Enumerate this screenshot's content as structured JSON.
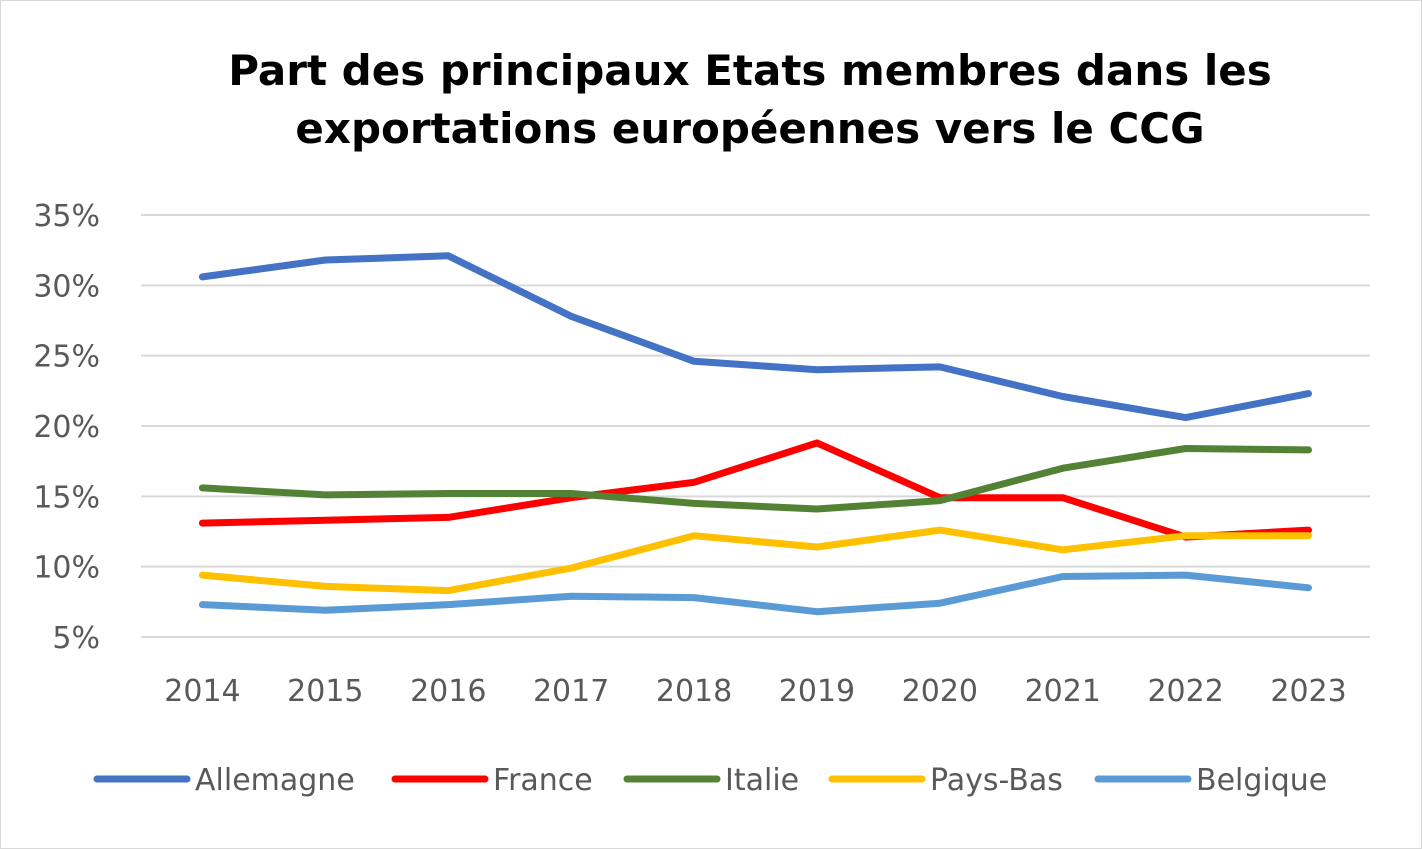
{
  "chart_data": {
    "type": "line",
    "title_line1": "Part des principaux Etats membres dans les",
    "title_line2": "exportations européennes vers le CCG",
    "categories": [
      "2014",
      "2015",
      "2016",
      "2017",
      "2018",
      "2019",
      "2020",
      "2021",
      "2022",
      "2023"
    ],
    "y_ticks": [
      "5%",
      "10%",
      "15%",
      "20%",
      "25%",
      "30%",
      "35%"
    ],
    "ylim": [
      5,
      35
    ],
    "grid": true,
    "legend_position": "bottom",
    "series": [
      {
        "name": "Allemagne",
        "color": "#4472C4",
        "values": [
          30.6,
          31.8,
          32.1,
          27.8,
          24.6,
          24.0,
          24.2,
          22.1,
          20.6,
          22.3
        ]
      },
      {
        "name": "France",
        "color": "#FF0000",
        "values": [
          13.1,
          13.3,
          13.5,
          14.9,
          16.0,
          18.8,
          14.9,
          14.9,
          12.1,
          12.6
        ]
      },
      {
        "name": "Italie",
        "color": "#548235",
        "values": [
          15.6,
          15.1,
          15.2,
          15.2,
          14.5,
          14.1,
          14.7,
          17.0,
          18.4,
          18.3
        ]
      },
      {
        "name": "Pays-Bas",
        "color": "#FFC000",
        "values": [
          9.4,
          8.6,
          8.3,
          9.9,
          12.2,
          11.4,
          12.6,
          11.2,
          12.2,
          12.2
        ]
      },
      {
        "name": "Belgique",
        "color": "#5B9BD5",
        "values": [
          7.3,
          6.9,
          7.3,
          7.9,
          7.8,
          6.8,
          7.4,
          9.3,
          9.4,
          8.5
        ]
      }
    ]
  }
}
